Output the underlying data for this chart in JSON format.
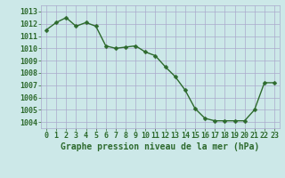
{
  "x": [
    0,
    1,
    2,
    3,
    4,
    5,
    6,
    7,
    8,
    9,
    10,
    11,
    12,
    13,
    14,
    15,
    16,
    17,
    18,
    19,
    20,
    21,
    22,
    23
  ],
  "y": [
    1011.5,
    1012.1,
    1012.5,
    1011.8,
    1012.1,
    1011.8,
    1010.2,
    1010.0,
    1010.1,
    1010.2,
    1009.7,
    1009.4,
    1008.5,
    1007.7,
    1006.6,
    1005.1,
    1004.3,
    1004.1,
    1004.1,
    1004.1,
    1004.1,
    1005.0,
    1007.2,
    1007.2
  ],
  "line_color": "#2d6a2d",
  "marker_color": "#2d6a2d",
  "bg_color": "#cce8e8",
  "grid_color": "#aaaacc",
  "text_color": "#2d6a2d",
  "ylim": [
    1003.5,
    1013.5
  ],
  "yticks": [
    1004,
    1005,
    1006,
    1007,
    1008,
    1009,
    1010,
    1011,
    1012,
    1013
  ],
  "xticks": [
    0,
    1,
    2,
    3,
    4,
    5,
    6,
    7,
    8,
    9,
    10,
    11,
    12,
    13,
    14,
    15,
    16,
    17,
    18,
    19,
    20,
    21,
    22,
    23
  ],
  "xlabel": "Graphe pression niveau de la mer (hPa)",
  "tick_fontsize": 6,
  "xlabel_fontsize": 7,
  "marker_size": 2.5,
  "line_width": 1.0
}
